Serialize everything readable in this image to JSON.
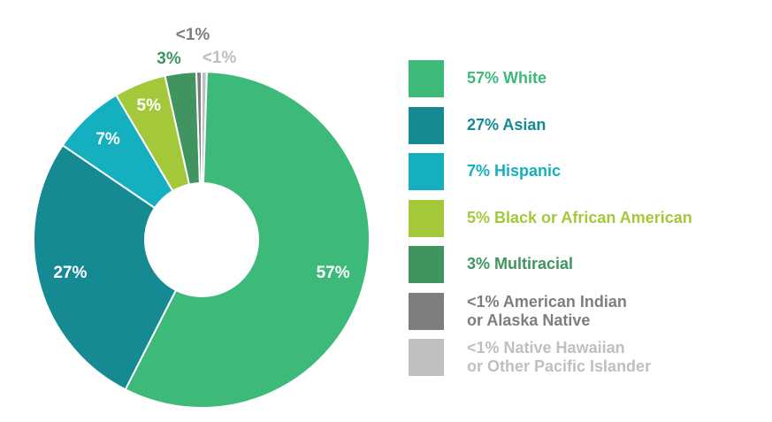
{
  "chart_data": {
    "type": "pie",
    "donut": true,
    "slices": [
      {
        "label": "<1% Native Hawaiian or Other Pacific Islander",
        "lines": [
          "<1% Native Hawaiian",
          "or Other Pacific Islander"
        ],
        "value": 0.5,
        "slice_label": "<1%",
        "color": "#bdbfc1",
        "text_color": "#bdbfc1"
      },
      {
        "label": "57% White",
        "lines": [
          "57% White"
        ],
        "value": 57,
        "slice_label": "57%",
        "color": "#3dba7a",
        "text_color": "#3dba7a"
      },
      {
        "label": "27% Asian",
        "lines": [
          "27% Asian"
        ],
        "value": 27,
        "slice_label": "27%",
        "color": "#168a93",
        "text_color": "#168a93"
      },
      {
        "label": "7% Hispanic",
        "lines": [
          "7% Hispanic"
        ],
        "value": 7,
        "slice_label": "7%",
        "color": "#14b0bf",
        "text_color": "#14b0bf"
      },
      {
        "label": "5% Black or African American",
        "lines": [
          "5% Black or African American"
        ],
        "value": 5,
        "slice_label": "5%",
        "color": "#a3c93a",
        "text_color": "#a3c93a"
      },
      {
        "label": "3% Multiracial",
        "lines": [
          "3% Multiracial"
        ],
        "value": 3,
        "slice_label": "3%",
        "color": "#3f9460",
        "text_color": "#3f9460"
      },
      {
        "label": "<1% American Indian or Alaska Native",
        "lines": [
          "<1% American Indian",
          "or Alaska Native"
        ],
        "value": 0.5,
        "slice_label": "<1%",
        "color": "#7c7e80",
        "text_color": "#7c7e80"
      }
    ],
    "legend_order": [
      1,
      2,
      3,
      4,
      5,
      6,
      0
    ],
    "legend_position": "right"
  }
}
